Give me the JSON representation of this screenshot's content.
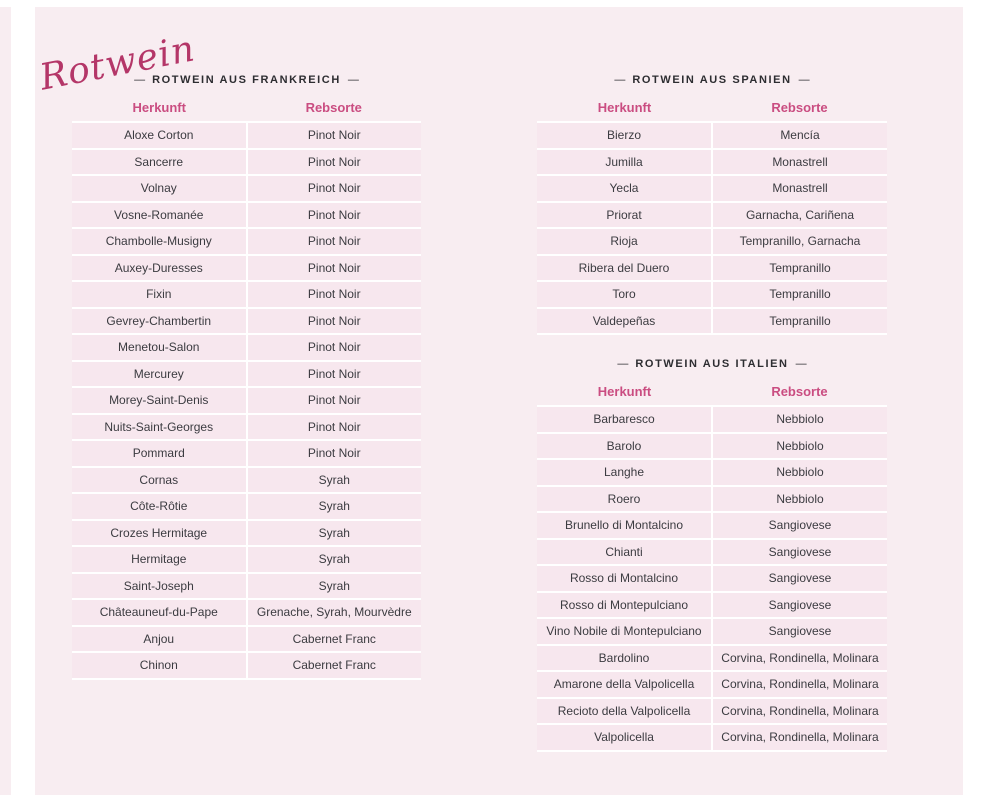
{
  "page_title_script": "Rotwein",
  "section_dash": "—",
  "colors": {
    "card_bg": "#f8edf1",
    "row_bg": "#f7e7ee",
    "separator": "#ffffff",
    "header_pink": "#ca4d81",
    "script_pink": "#b43668",
    "title_dark": "#2d2d31",
    "cell_text": "#3b3b40"
  },
  "tables": [
    {
      "title": "ROTWEIN AUS FRANKREICH",
      "columns": [
        "Herkunft",
        "Rebsorte"
      ],
      "rows": [
        [
          "Aloxe Corton",
          "Pinot Noir"
        ],
        [
          "Sancerre",
          "Pinot Noir"
        ],
        [
          "Volnay",
          "Pinot Noir"
        ],
        [
          "Vosne-Romanée",
          "Pinot Noir"
        ],
        [
          "Chambolle-Musigny",
          "Pinot Noir"
        ],
        [
          "Auxey-Duresses",
          "Pinot Noir"
        ],
        [
          "Fixin",
          "Pinot Noir"
        ],
        [
          "Gevrey-Chambertin",
          "Pinot Noir"
        ],
        [
          "Menetou-Salon",
          "Pinot Noir"
        ],
        [
          "Mercurey",
          "Pinot Noir"
        ],
        [
          "Morey-Saint-Denis",
          "Pinot Noir"
        ],
        [
          "Nuits-Saint-Georges",
          "Pinot Noir"
        ],
        [
          "Pommard",
          "Pinot Noir"
        ],
        [
          "Cornas",
          "Syrah"
        ],
        [
          "Côte-Rôtie",
          "Syrah"
        ],
        [
          "Crozes Hermitage",
          "Syrah"
        ],
        [
          "Hermitage",
          "Syrah"
        ],
        [
          "Saint-Joseph",
          "Syrah"
        ],
        [
          "Châteauneuf-du-Pape",
          "Grenache, Syrah, Mourvèdre"
        ],
        [
          "Anjou",
          "Cabernet Franc"
        ],
        [
          "Chinon",
          "Cabernet Franc"
        ]
      ]
    },
    {
      "title": "ROTWEIN AUS SPANIEN",
      "columns": [
        "Herkunft",
        "Rebsorte"
      ],
      "rows": [
        [
          "Bierzo",
          "Mencía"
        ],
        [
          "Jumilla",
          "Monastrell"
        ],
        [
          "Yecla",
          "Monastrell"
        ],
        [
          "Priorat",
          "Garnacha, Cariñena"
        ],
        [
          "Rioja",
          "Tempranillo, Garnacha"
        ],
        [
          "Ribera del Duero",
          "Tempranillo"
        ],
        [
          "Toro",
          "Tempranillo"
        ],
        [
          "Valdepeñas",
          "Tempranillo"
        ]
      ]
    },
    {
      "title": "ROTWEIN AUS ITALIEN",
      "columns": [
        "Herkunft",
        "Rebsorte"
      ],
      "rows": [
        [
          "Barbaresco",
          "Nebbiolo"
        ],
        [
          "Barolo",
          "Nebbiolo"
        ],
        [
          "Langhe",
          "Nebbiolo"
        ],
        [
          "Roero",
          "Nebbiolo"
        ],
        [
          "Brunello di Montalcino",
          "Sangiovese"
        ],
        [
          "Chianti",
          "Sangiovese"
        ],
        [
          "Rosso di Montalcino",
          "Sangiovese"
        ],
        [
          "Rosso di Montepulciano",
          "Sangiovese"
        ],
        [
          "Vino Nobile di Montepulciano",
          "Sangiovese"
        ],
        [
          "Bardolino",
          "Corvina, Rondinella, Molinara"
        ],
        [
          "Amarone della Valpolicella",
          "Corvina, Rondinella, Molinara"
        ],
        [
          "Recioto della Valpolicella",
          "Corvina, Rondinella, Molinara"
        ],
        [
          "Valpolicella",
          "Corvina, Rondinella, Molinara"
        ]
      ]
    }
  ]
}
